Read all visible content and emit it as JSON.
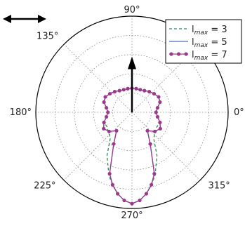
{
  "chart_data": {
    "type": "line",
    "projection": "polar",
    "angle_ticks": [
      {
        "deg": 0,
        "label": "0°"
      },
      {
        "deg": 45,
        "label": ""
      },
      {
        "deg": 90,
        "label": "90°"
      },
      {
        "deg": 135,
        "label": "135°"
      },
      {
        "deg": 180,
        "label": "180°"
      },
      {
        "deg": 225,
        "label": "225°"
      },
      {
        "deg": 270,
        "label": "270°"
      },
      {
        "deg": 315,
        "label": "315°"
      }
    ],
    "rlim": [
      0,
      1
    ],
    "rgrid_values": [
      0.2,
      0.4,
      0.6,
      0.8
    ],
    "grid": true,
    "legend_position": "top-right",
    "series": [
      {
        "name": "lmax = 3",
        "label_base": "l",
        "label_sub": "max",
        "label_suffix": " = 3",
        "style": "dashed",
        "color": "#2e8b57",
        "angles": [
          0,
          10,
          20,
          30,
          40,
          50,
          60,
          70,
          80,
          90,
          100,
          110,
          120,
          130,
          140,
          150,
          160,
          170,
          180,
          190,
          200,
          210,
          220,
          230,
          240,
          250,
          255,
          260,
          265,
          270,
          275,
          280,
          285,
          290,
          300,
          310,
          320,
          330,
          340,
          350
        ],
        "r": [
          0.25,
          0.27,
          0.31,
          0.32,
          0.3,
          0.28,
          0.26,
          0.25,
          0.25,
          0.25,
          0.25,
          0.25,
          0.26,
          0.28,
          0.3,
          0.32,
          0.31,
          0.27,
          0.25,
          0.27,
          0.31,
          0.3,
          0.32,
          0.35,
          0.52,
          0.7,
          0.78,
          0.86,
          0.92,
          0.95,
          0.92,
          0.86,
          0.78,
          0.7,
          0.52,
          0.35,
          0.32,
          0.3,
          0.31,
          0.27
        ]
      },
      {
        "name": "lmax = 5",
        "label_base": "l",
        "label_sub": "max",
        "label_suffix": " = 5",
        "style": "solid",
        "color": "#4a6fbd",
        "angles": [
          0,
          10,
          20,
          30,
          40,
          50,
          60,
          70,
          80,
          90,
          100,
          110,
          120,
          130,
          140,
          150,
          160,
          170,
          180,
          190,
          200,
          210,
          220,
          230,
          240,
          250,
          255,
          260,
          265,
          270,
          275,
          280,
          285,
          290,
          300,
          310,
          320,
          330,
          340,
          350
        ],
        "r": [
          0.25,
          0.27,
          0.31,
          0.32,
          0.3,
          0.28,
          0.26,
          0.25,
          0.25,
          0.25,
          0.25,
          0.25,
          0.26,
          0.28,
          0.3,
          0.32,
          0.31,
          0.27,
          0.25,
          0.27,
          0.31,
          0.34,
          0.31,
          0.25,
          0.38,
          0.68,
          0.78,
          0.86,
          0.92,
          0.95,
          0.92,
          0.86,
          0.78,
          0.68,
          0.38,
          0.25,
          0.31,
          0.34,
          0.31,
          0.27
        ]
      },
      {
        "name": "lmax = 7",
        "label_base": "l",
        "label_sub": "max",
        "label_suffix": " = 7",
        "style": "dotted",
        "color": "#9b3a8a",
        "angles": [
          0,
          10,
          20,
          30,
          40,
          50,
          60,
          70,
          80,
          90,
          100,
          110,
          120,
          130,
          140,
          150,
          160,
          170,
          180,
          190,
          200,
          210,
          220,
          230,
          240,
          250,
          255,
          260,
          265,
          270,
          275,
          280,
          285,
          290,
          300,
          310,
          320,
          330,
          340,
          350
        ],
        "r": [
          0.25,
          0.27,
          0.31,
          0.32,
          0.3,
          0.28,
          0.26,
          0.25,
          0.25,
          0.25,
          0.25,
          0.25,
          0.26,
          0.28,
          0.3,
          0.32,
          0.31,
          0.27,
          0.25,
          0.27,
          0.31,
          0.34,
          0.31,
          0.25,
          0.38,
          0.68,
          0.78,
          0.86,
          0.92,
          0.95,
          0.92,
          0.86,
          0.78,
          0.68,
          0.38,
          0.25,
          0.31,
          0.34,
          0.31,
          0.27
        ]
      }
    ],
    "arrow": {
      "direction_deg": 90,
      "length_r": 0.58
    }
  }
}
